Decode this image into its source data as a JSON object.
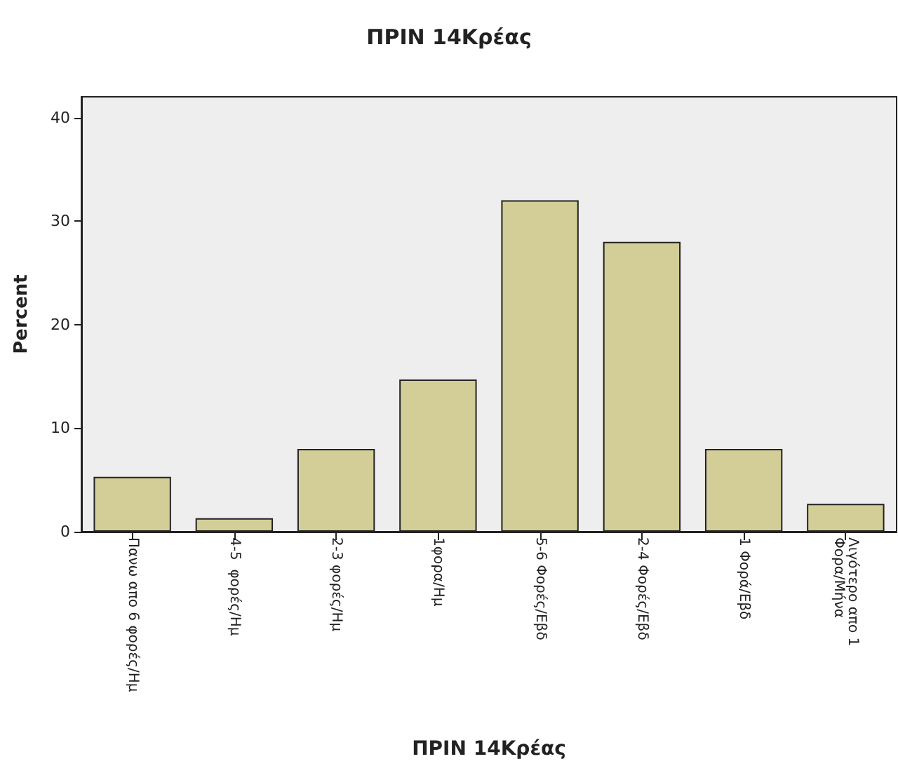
{
  "chart_data": {
    "type": "bar",
    "title": "ΠΡΙΝ 14Κρέας",
    "xlabel": "ΠΡΙΝ 14Κρέας",
    "ylabel": "Percent",
    "categories": [
      "Πανω απο 6 φορές/Ημ",
      "4-5  φορές/Ημ",
      "2-3 φορές/Ημ",
      "1φορα/Ημ",
      "5-6 Φορές/Εβδ",
      "2-4 Φορές/Εβδ",
      "1 Φορά/Εβδ",
      "Λιγότερο απο 1\nΦορα/Μήνα"
    ],
    "values": [
      5.3,
      1.3,
      8.0,
      14.7,
      32.0,
      28.0,
      8.0,
      2.7
    ],
    "color": "#d3ce97",
    "ylim": [
      0,
      42
    ],
    "yticks": [
      0,
      10,
      20,
      30,
      40
    ]
  }
}
